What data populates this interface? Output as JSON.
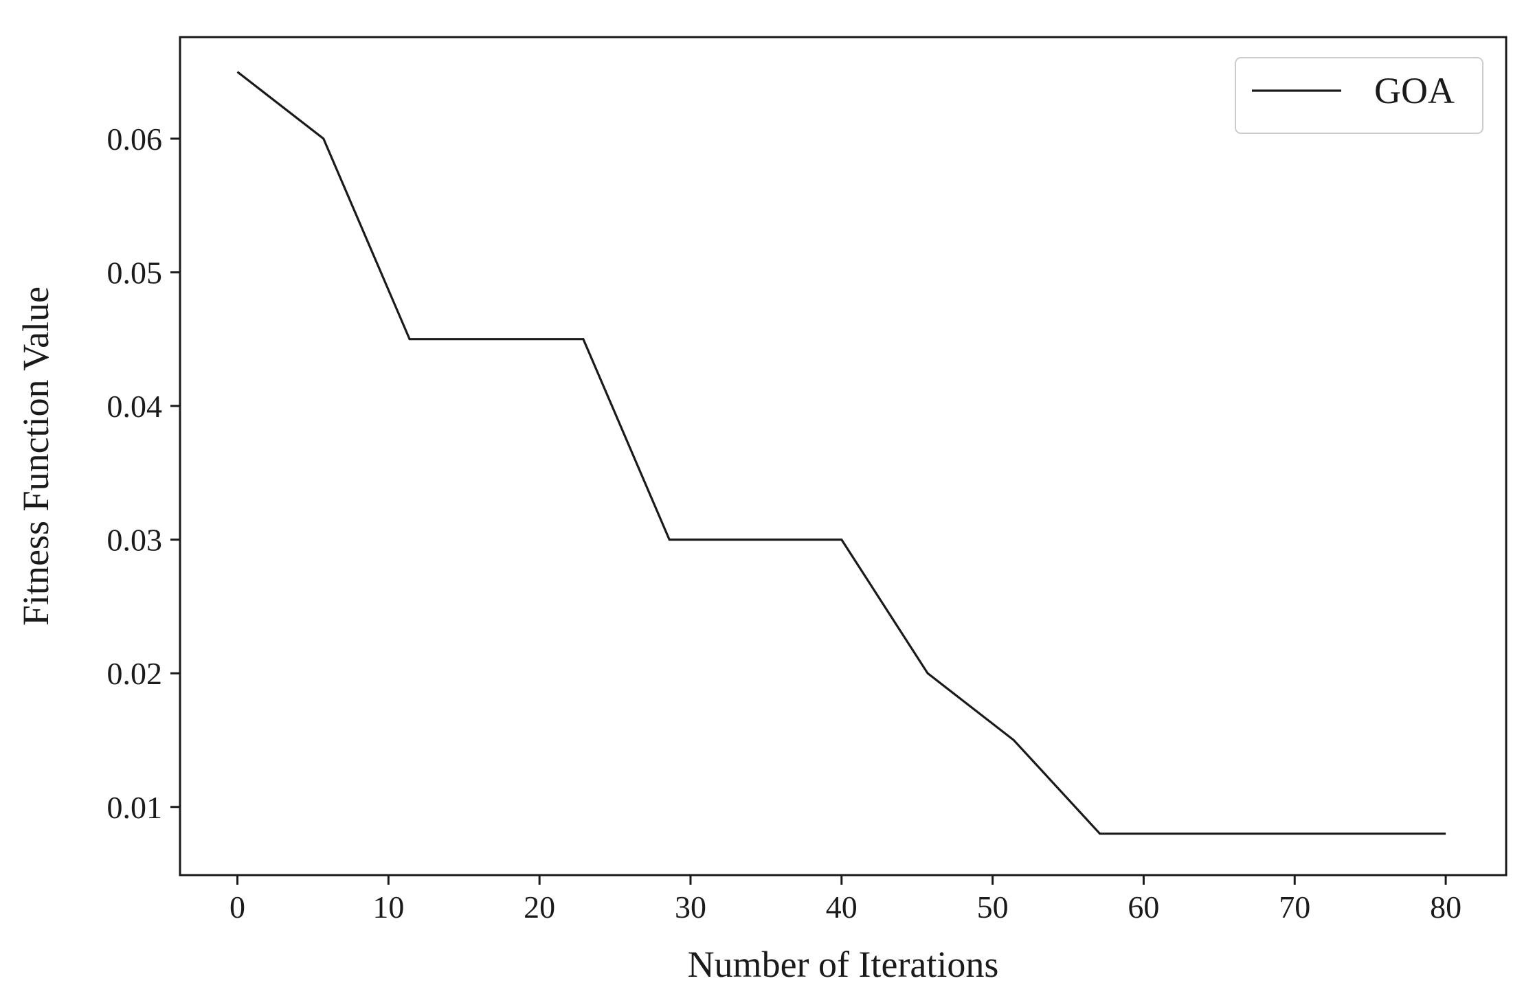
{
  "chart_data": {
    "type": "line",
    "title": "",
    "xlabel": "Number of Iterations",
    "ylabel": "Fitness Function Value",
    "xlim": [
      -3.8,
      84.0
    ],
    "ylim": [
      0.0049,
      0.0676
    ],
    "xticks": [
      0,
      10,
      20,
      30,
      40,
      50,
      60,
      70,
      80
    ],
    "xtick_labels": [
      "0",
      "10",
      "20",
      "30",
      "40",
      "50",
      "60",
      "70",
      "80"
    ],
    "yticks": [
      0.01,
      0.02,
      0.03,
      0.04,
      0.05,
      0.06
    ],
    "ytick_labels": [
      "0.01",
      "0.02",
      "0.03",
      "0.04",
      "0.05",
      "0.06"
    ],
    "grid": false,
    "legend_position": "top-right",
    "line_color": "#1a1a1a",
    "series": [
      {
        "name": "GOA",
        "x": [
          0,
          5.7,
          11.4,
          22.9,
          28.6,
          40,
          45.7,
          51.4,
          57.1,
          80
        ],
        "y": [
          0.065,
          0.06,
          0.045,
          0.045,
          0.03,
          0.03,
          0.02,
          0.015,
          0.008,
          0.008
        ]
      }
    ]
  }
}
